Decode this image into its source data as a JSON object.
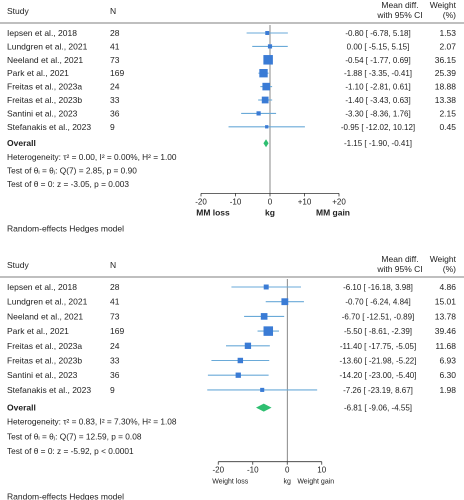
{
  "chart_data": [
    {
      "type": "forest",
      "header": {
        "study": "Study",
        "n": "N",
        "effect_line1": "Mean diff.",
        "effect_line2": "with 95% CI",
        "weight_line1": "Weight",
        "weight_line2": "(%)"
      },
      "studies": [
        {
          "name": "Iepsen et al., 2018",
          "n": "28",
          "est": -0.8,
          "lo": -6.78,
          "hi": 5.18,
          "ci_text": "-0.80 [  -6.78,   5.18]",
          "weight": "1.53",
          "w": 1.53
        },
        {
          "name": "Lundgren et al., 2021",
          "n": "41",
          "est": 0.0,
          "lo": -5.15,
          "hi": 5.15,
          "ci_text": "0.00 [  -5.15,   5.15]",
          "weight": "2.07",
          "w": 2.07
        },
        {
          "name": "Neeland et al., 2021",
          "n": "73",
          "est": -0.54,
          "lo": -1.77,
          "hi": 0.69,
          "ci_text": "-0.54 [  -1.77,   0.69]",
          "weight": "36.15",
          "w": 36.15
        },
        {
          "name": "Park et al., 2021",
          "n": "169",
          "est": -1.88,
          "lo": -3.35,
          "hi": -0.41,
          "ci_text": "-1.88 [  -3.35,  -0.41]",
          "weight": "25.39",
          "w": 25.39
        },
        {
          "name": "Freitas et al., 2023a",
          "n": "24",
          "est": -1.1,
          "lo": -2.81,
          "hi": 0.61,
          "ci_text": "-1.10 [  -2.81,   0.61]",
          "weight": "18.88",
          "w": 18.88
        },
        {
          "name": "Freitas et al., 2023b",
          "n": "33",
          "est": -1.4,
          "lo": -3.43,
          "hi": 0.63,
          "ci_text": "-1.40 [  -3.43,   0.63]",
          "weight": "13.38",
          "w": 13.38
        },
        {
          "name": "Santini et al., 2023",
          "n": "36",
          "est": -3.3,
          "lo": -8.36,
          "hi": 1.76,
          "ci_text": "-3.30 [  -8.36,   1.76]",
          "weight": "2.15",
          "w": 2.15
        },
        {
          "name": "Stefanakis et al., 2023",
          "n": "9",
          "est": -0.95,
          "lo": -12.02,
          "hi": 10.12,
          "ci_text": "-0.95 [ -12.02,  10.12]",
          "weight": "0.45",
          "w": 0.45
        }
      ],
      "overall": {
        "label": "Overall",
        "est": -1.15,
        "lo": -1.9,
        "hi": -0.41,
        "ci_text": "-1.15 [  -1.90,  -0.41]"
      },
      "stats": [
        "Heterogeneity: τ² = 0.00, I² = 0.00%, H² = 1.00",
        "Test of θᵢ = θⱼ: Q(7) = 2.85, p = 0.90",
        "Test of θ = 0: z = -3.05, p = 0.003"
      ],
      "xlim": [
        -20,
        20
      ],
      "ticks": [
        -20,
        -10,
        0,
        10,
        20
      ],
      "tick_labels": [
        "-20",
        "-10",
        "0",
        "+10",
        "+20"
      ],
      "axis_labels": {
        "left": "MM loss",
        "center": "kg",
        "right": "MM gain"
      },
      "model_note": "Random-effects Hedges model",
      "colors": {
        "box": "#3a7bd5",
        "ci": "#6aaad8",
        "diamond": "#2fbf71"
      }
    },
    {
      "type": "forest",
      "header": {
        "study": "Study",
        "n": "N",
        "effect_line1": "Mean diff.",
        "effect_line2": "with 95% CI",
        "weight_line1": "Weight",
        "weight_line2": "(%)"
      },
      "studies": [
        {
          "name": "Iepsen et al., 2018",
          "n": "28",
          "est": -6.1,
          "lo": -16.18,
          "hi": 3.98,
          "ci_text": "-6.10 [ -16.18,   3.98]",
          "weight": "4.86",
          "w": 4.86
        },
        {
          "name": "Lundgren et al., 2021",
          "n": "41",
          "est": -0.7,
          "lo": -6.24,
          "hi": 4.84,
          "ci_text": "-0.70 [  -6.24,   4.84]",
          "weight": "15.01",
          "w": 15.01
        },
        {
          "name": "Neeland et al., 2021",
          "n": "73",
          "est": -6.7,
          "lo": -12.51,
          "hi": -0.89,
          "ci_text": "-6.70 [ -12.51,  -0.89]",
          "weight": "13.78",
          "w": 13.78
        },
        {
          "name": "Park et al., 2021",
          "n": "169",
          "est": -5.5,
          "lo": -8.61,
          "hi": -2.39,
          "ci_text": "-5.50 [  -8.61,  -2.39]",
          "weight": "39.46",
          "w": 39.46
        },
        {
          "name": "Freitas et al., 2023a",
          "n": "24",
          "est": -11.4,
          "lo": -17.75,
          "hi": -5.05,
          "ci_text": "-11.40 [ -17.75,  -5.05]",
          "weight": "11.68",
          "w": 11.68
        },
        {
          "name": "Freitas et al., 2023b",
          "n": "33",
          "est": -13.6,
          "lo": -21.98,
          "hi": -5.22,
          "ci_text": "-13.60 [ -21.98,  -5.22]",
          "weight": "6.93",
          "w": 6.93
        },
        {
          "name": "Santini et al., 2023",
          "n": "36",
          "est": -14.2,
          "lo": -23.0,
          "hi": -5.4,
          "ci_text": "-14.20 [ -23.00,  -5.40]",
          "weight": "6.30",
          "w": 6.3
        },
        {
          "name": "Stefanakis et al., 2023",
          "n": "9",
          "est": -7.26,
          "lo": -23.19,
          "hi": 8.67,
          "ci_text": "-7.26 [ -23.19,   8.67]",
          "weight": "1.98",
          "w": 1.98
        }
      ],
      "overall": {
        "label": "Overall",
        "est": -6.81,
        "lo": -9.06,
        "hi": -4.55,
        "ci_text": "-6.81 [  -9.06,  -4.55]"
      },
      "stats": [
        "Heterogeneity: τ² = 0.83, I² = 7.30%, H² = 1.08",
        "Test of θᵢ = θⱼ: Q(7) = 12.59, p = 0.08",
        "Test of θ = 0: z = -5.92, p < 0.0001"
      ],
      "xlim": [
        -25,
        15
      ],
      "ticks": [
        -20,
        -10,
        0,
        10
      ],
      "tick_labels": [
        "-20",
        "-10",
        "0",
        "10"
      ],
      "axis_labels": {
        "left": "Weight loss",
        "center": "kg",
        "right": "Weight gain"
      },
      "model_note": "Random-effects Hedges model",
      "colors": {
        "box": "#3a7bd5",
        "ci": "#6aaad8",
        "diamond": "#2fbf71"
      }
    }
  ]
}
